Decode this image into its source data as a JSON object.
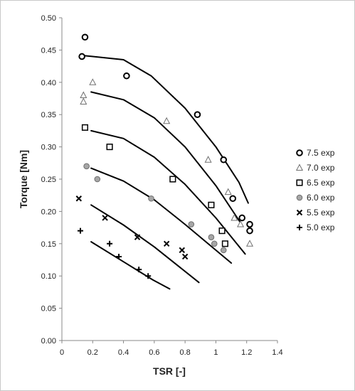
{
  "chart_data": {
    "type": "scatter",
    "title": "",
    "xlabel": "TSR [-]",
    "ylabel": "Torque [Nm]",
    "xlim": [
      0,
      1.4
    ],
    "ylim": [
      0,
      0.5
    ],
    "x_ticks": [
      "0",
      "0.2",
      "0.4",
      "0.6",
      "0.8",
      "1",
      "1.2",
      "1.4"
    ],
    "y_ticks": [
      "0.00",
      "0.05",
      "0.10",
      "0.15",
      "0.20",
      "0.25",
      "0.30",
      "0.35",
      "0.40",
      "0.45",
      "0.50"
    ],
    "grid": false,
    "legend_position": "right",
    "series": [
      {
        "name": "7.5 exp",
        "marker": "circle",
        "x": [
          0.13,
          0.15,
          0.42,
          0.88,
          1.05,
          1.11,
          1.17,
          1.22,
          1.22
        ],
        "y": [
          0.44,
          0.47,
          0.41,
          0.35,
          0.28,
          0.22,
          0.19,
          0.18,
          0.17
        ]
      },
      {
        "name": "7.0 exp",
        "marker": "triangle",
        "x": [
          0.14,
          0.14,
          0.2,
          0.68,
          0.95,
          1.08,
          1.12,
          1.16,
          1.22
        ],
        "y": [
          0.38,
          0.37,
          0.4,
          0.34,
          0.28,
          0.23,
          0.19,
          0.18,
          0.15
        ]
      },
      {
        "name": "6.5 exp",
        "marker": "square",
        "x": [
          0.15,
          0.31,
          0.72,
          0.97,
          1.04,
          1.06
        ],
        "y": [
          0.33,
          0.3,
          0.25,
          0.21,
          0.17,
          0.15
        ]
      },
      {
        "name": "6.0 exp",
        "marker": "filled-circle",
        "x": [
          0.16,
          0.23,
          0.58,
          0.84,
          0.97,
          0.99,
          1.05
        ],
        "y": [
          0.27,
          0.25,
          0.22,
          0.18,
          0.16,
          0.15,
          0.14
        ]
      },
      {
        "name": "5.5 exp",
        "marker": "x",
        "x": [
          0.11,
          0.28,
          0.49,
          0.68,
          0.78,
          0.8
        ],
        "y": [
          0.22,
          0.19,
          0.16,
          0.15,
          0.14,
          0.13
        ]
      },
      {
        "name": "5.0 exp",
        "marker": "plus",
        "x": [
          0.12,
          0.31,
          0.37,
          0.5,
          0.56
        ],
        "y": [
          0.17,
          0.15,
          0.13,
          0.11,
          0.1
        ]
      }
    ],
    "model_curves": [
      {
        "x": [
          0.12,
          0.4,
          0.58,
          0.8,
          1.0,
          1.15,
          1.21
        ],
        "y": [
          0.442,
          0.435,
          0.41,
          0.36,
          0.3,
          0.245,
          0.213
        ]
      },
      {
        "x": [
          0.19,
          0.4,
          0.6,
          0.8,
          1.0,
          1.17
        ],
        "y": [
          0.385,
          0.373,
          0.345,
          0.3,
          0.24,
          0.179
        ]
      },
      {
        "x": [
          0.19,
          0.4,
          0.6,
          0.8,
          1.0,
          1.19
        ],
        "y": [
          0.325,
          0.313,
          0.284,
          0.242,
          0.19,
          0.134
        ]
      },
      {
        "x": [
          0.19,
          0.4,
          0.6,
          0.8,
          1.0,
          1.1
        ],
        "y": [
          0.267,
          0.247,
          0.218,
          0.18,
          0.14,
          0.12
        ]
      },
      {
        "x": [
          0.19,
          0.4,
          0.6,
          0.89
        ],
        "y": [
          0.21,
          0.179,
          0.145,
          0.09
        ]
      },
      {
        "x": [
          0.19,
          0.4,
          0.59,
          0.7
        ],
        "y": [
          0.153,
          0.122,
          0.094,
          0.08
        ]
      }
    ]
  }
}
